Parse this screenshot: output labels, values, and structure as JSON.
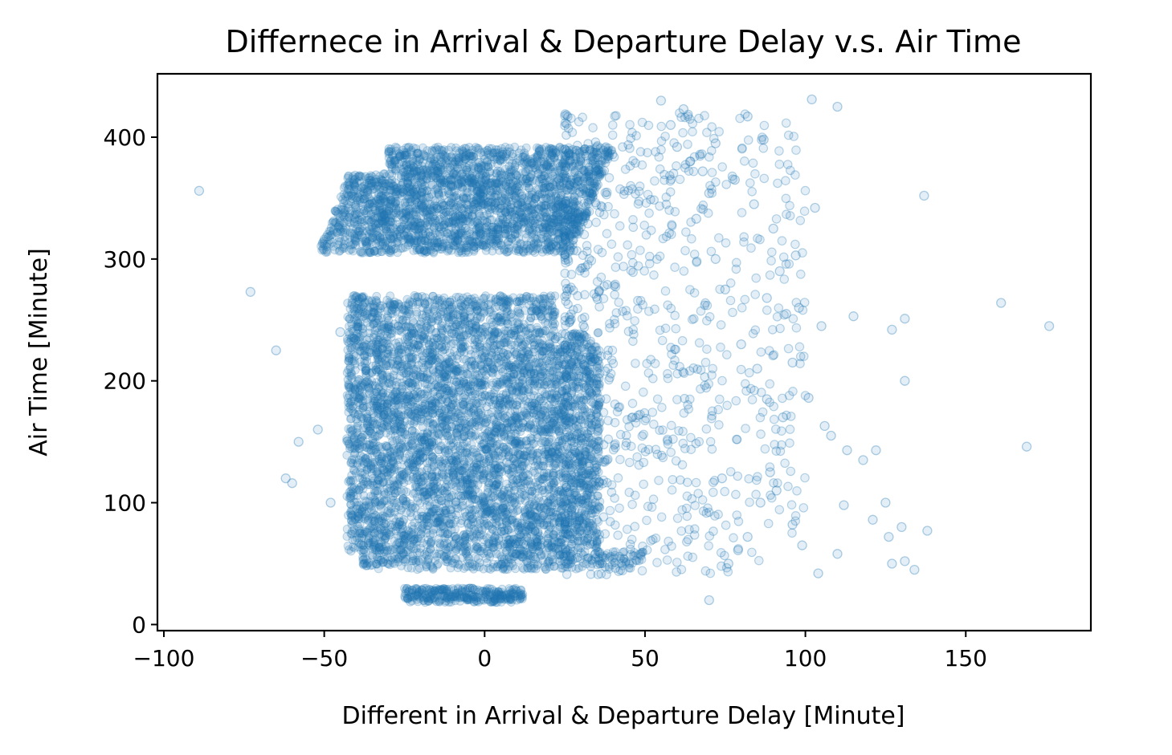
{
  "chart_data": {
    "type": "scatter",
    "title": "Differnece in Arrival & Departure Delay v.s. Air Time",
    "xlabel": "Different in Arrival & Departure Delay [Minute]",
    "ylabel": "Air Time [Minute]",
    "xlim": [
      -102,
      189
    ],
    "ylim": [
      -5,
      452
    ],
    "xticks": [
      -100,
      -50,
      0,
      50,
      100,
      150
    ],
    "xtick_labels": [
      "−100",
      "−50",
      "0",
      "50",
      "100",
      "150"
    ],
    "yticks": [
      0,
      100,
      200,
      300,
      400
    ],
    "ytick_labels": [
      "0",
      "100",
      "200",
      "300",
      "400"
    ],
    "grid": false,
    "marker_color": "#1f77b4",
    "marker_alpha": 0.12,
    "dense_clusters": [
      {
        "x_range": [
          -55,
          30
        ],
        "y_range": [
          300,
          395
        ]
      },
      {
        "x_range": [
          -45,
          35
        ],
        "y_range": [
          45,
          270
        ]
      },
      {
        "x_range": [
          -25,
          10
        ],
        "y_range": [
          18,
          30
        ]
      }
    ],
    "outlier_points": [
      [
        -89,
        356
      ],
      [
        -73,
        273
      ],
      [
        -65,
        225
      ],
      [
        -62,
        120
      ],
      [
        -60,
        116
      ],
      [
        -58,
        150
      ],
      [
        -52,
        160
      ],
      [
        -48,
        100
      ],
      [
        -45,
        240
      ],
      [
        55,
        430
      ],
      [
        62,
        423
      ],
      [
        72,
        395
      ],
      [
        82,
        417
      ],
      [
        87,
        398
      ],
      [
        102,
        431
      ],
      [
        110,
        425
      ],
      [
        137,
        352
      ],
      [
        103,
        342
      ],
      [
        97,
        303
      ],
      [
        88,
        268
      ],
      [
        94,
        255
      ],
      [
        105,
        245
      ],
      [
        115,
        253
      ],
      [
        96,
        215
      ],
      [
        101,
        186
      ],
      [
        106,
        163
      ],
      [
        108,
        155
      ],
      [
        113,
        143
      ],
      [
        118,
        135
      ],
      [
        122,
        143
      ],
      [
        131,
        251
      ],
      [
        127,
        242
      ],
      [
        131,
        200
      ],
      [
        161,
        264
      ],
      [
        176,
        245
      ],
      [
        169,
        146
      ],
      [
        125,
        100
      ],
      [
        121,
        86
      ],
      [
        126,
        72
      ],
      [
        130,
        80
      ],
      [
        131,
        52
      ],
      [
        127,
        50
      ],
      [
        134,
        45
      ],
      [
        138,
        77
      ],
      [
        112,
        98
      ],
      [
        110,
        58
      ],
      [
        104,
        42
      ],
      [
        99,
        65
      ],
      [
        96,
        82
      ],
      [
        91,
        110
      ],
      [
        89,
        125
      ],
      [
        86,
        100
      ],
      [
        82,
        72
      ],
      [
        79,
        61
      ],
      [
        76,
        50
      ],
      [
        74,
        120
      ],
      [
        70,
        20
      ],
      [
        78,
        365
      ],
      [
        84,
        345
      ],
      [
        90,
        325
      ],
      [
        92,
        290
      ],
      [
        98,
        260
      ],
      [
        80,
        230
      ],
      [
        85,
        210
      ],
      [
        88,
        185
      ],
      [
        93,
        170
      ],
      [
        75,
        275
      ],
      [
        72,
        300
      ],
      [
        66,
        333
      ],
      [
        70,
        354
      ],
      [
        68,
        372
      ],
      [
        64,
        380
      ],
      [
        60,
        392
      ],
      [
        58,
        410
      ]
    ]
  }
}
